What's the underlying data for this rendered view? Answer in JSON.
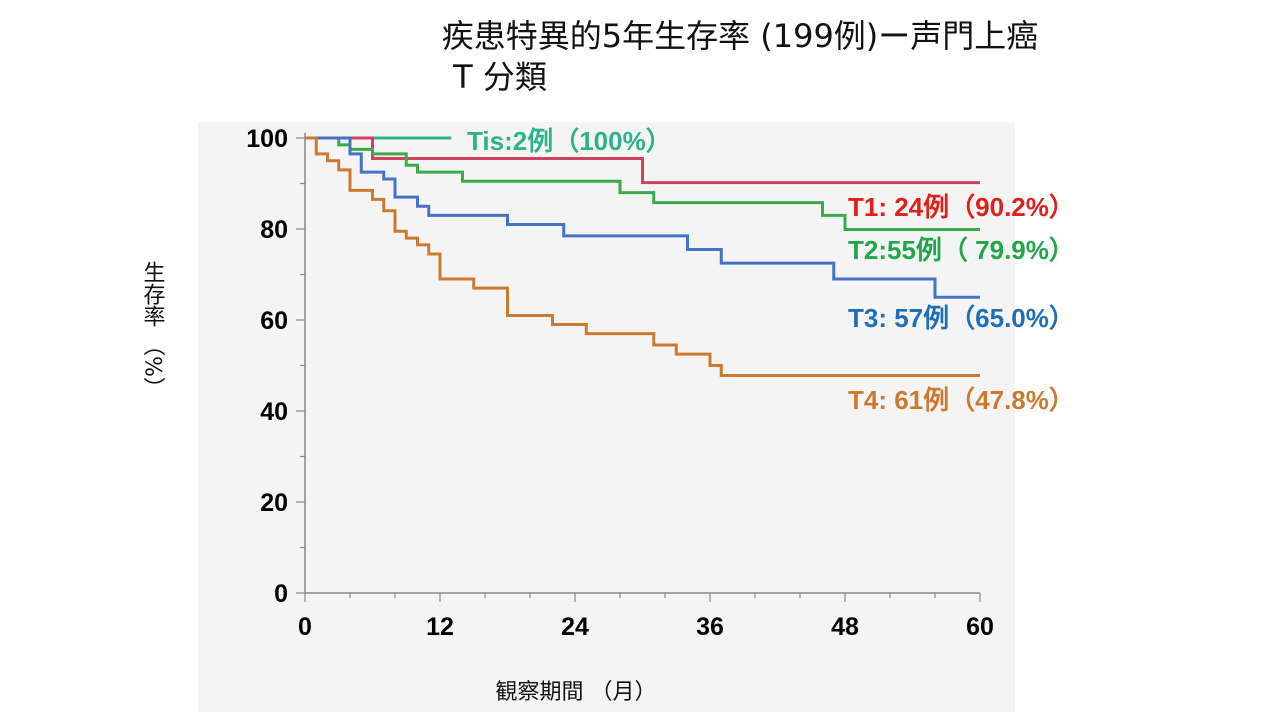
{
  "page": {
    "title_line1": "疾患特異的5年生存率 (199例)ー声門上癌",
    "title_line2": "T 分類"
  },
  "chart_data": {
    "type": "line",
    "title": "疾患特異的5年生存率 (199例)ー声門上癌 T 分類",
    "xlabel": "観察期間 （月）",
    "ylabel": "生存率 （%）",
    "xlim": [
      0,
      60
    ],
    "ylim": [
      0,
      100
    ],
    "x_ticks": [
      "0",
      "12",
      "24",
      "36",
      "48",
      "60"
    ],
    "y_ticks": [
      "0",
      "20",
      "40",
      "60",
      "80",
      "100"
    ],
    "grid": false,
    "step": true,
    "series": [
      {
        "name": "Tis:2例（100%）",
        "color": "#2db38a",
        "x": [
          0,
          13
        ],
        "y": [
          100,
          100
        ]
      },
      {
        "name": "T1: 24例（90.2%）",
        "color": "#d04060",
        "x": [
          0,
          6,
          30,
          60
        ],
        "y": [
          100,
          95.5,
          90.2,
          90.2
        ]
      },
      {
        "name": "T2:55例（ 79.9%）",
        "color": "#3aab4a",
        "x": [
          0,
          3,
          4,
          6,
          9,
          10,
          14,
          28,
          31,
          46,
          48,
          60
        ],
        "y": [
          100,
          98.5,
          97.5,
          96.5,
          94,
          92.5,
          90.5,
          88,
          85.8,
          83,
          79.9,
          79.9
        ]
      },
      {
        "name": "T3: 57例（65.0%）",
        "color": "#4472c4",
        "x": [
          0,
          4,
          5,
          7,
          8,
          10,
          11,
          18,
          23,
          34,
          37,
          47,
          56,
          60
        ],
        "y": [
          100,
          96.5,
          92.5,
          91,
          87,
          85,
          83,
          81,
          78.5,
          75.5,
          72.5,
          69,
          65,
          65
        ]
      },
      {
        "name": "T4: 61例（47.8%）",
        "color": "#cc7a30",
        "x": [
          0,
          1,
          2,
          3,
          4,
          6,
          7,
          8,
          9,
          10,
          11,
          12,
          15,
          18,
          22,
          25,
          31,
          33,
          36,
          37,
          60
        ],
        "y": [
          100,
          96.5,
          95,
          93,
          88.5,
          86.5,
          84,
          79.5,
          78,
          76.5,
          74.5,
          69,
          67,
          61,
          59,
          57,
          54.5,
          52.5,
          50,
          47.8,
          47.8
        ]
      }
    ]
  }
}
